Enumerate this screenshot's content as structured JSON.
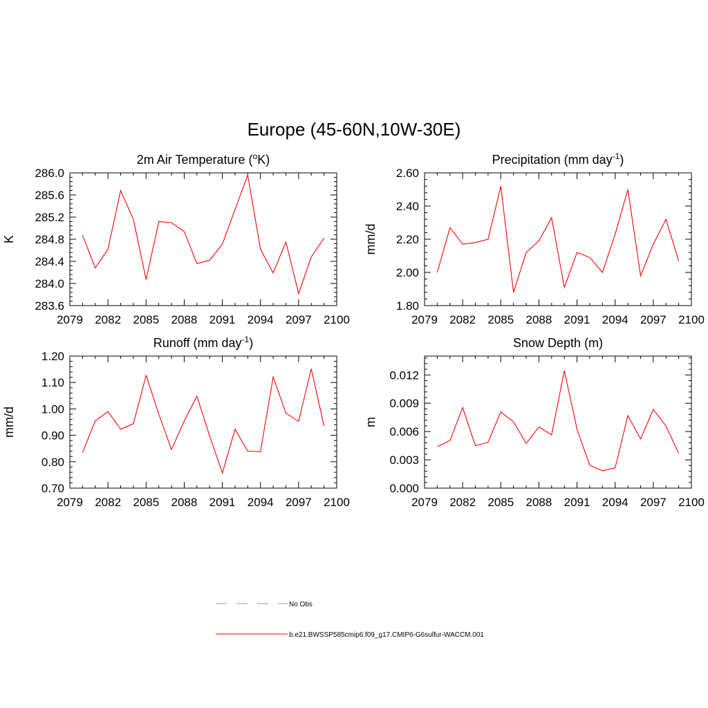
{
  "figure": {
    "title": "Europe (45-60N,10W-30E)"
  },
  "legend": {
    "entries": [
      {
        "label": "No Obs",
        "color": "#aaaaee",
        "style": "dashed"
      },
      {
        "label": "b.e21.BWSSP585cmip6.f09_g17.CMIP6-G6sulfur-WACCM.001",
        "color": "#ff0000",
        "style": "solid"
      }
    ]
  },
  "chart_data": [
    {
      "type": "line",
      "title": "2m Air Temperature (oK)",
      "title_main": "2m Air Temperature (",
      "title_sup": "o",
      "title_tail": "K)",
      "xlabel": "",
      "ylabel": "K",
      "xlim": [
        2079,
        2100
      ],
      "ylim": [
        283.6,
        286.0
      ],
      "xticks": [
        "2079",
        "2082",
        "2085",
        "2088",
        "2091",
        "2094",
        "2097",
        "2100"
      ],
      "yticks": [
        "283.6",
        "284.0",
        "284.4",
        "284.8",
        "285.2",
        "285.6",
        "286.0"
      ],
      "series": [
        {
          "color": "#ff0000",
          "x": [
            2080,
            2081,
            2082,
            2083,
            2084,
            2085,
            2086,
            2087,
            2088,
            2089,
            2090,
            2091,
            2092,
            2093,
            2094,
            2095,
            2096,
            2097,
            2098,
            2099
          ],
          "values": [
            284.87,
            284.28,
            284.62,
            285.68,
            285.16,
            284.07,
            285.12,
            285.1,
            284.94,
            284.36,
            284.42,
            284.71,
            285.34,
            285.96,
            284.62,
            284.19,
            284.75,
            283.82,
            284.48,
            284.82
          ]
        }
      ]
    },
    {
      "type": "line",
      "title": "Precipitation (mm day-1)",
      "title_main": "Precipitation (mm day",
      "title_sup": "-1",
      "title_tail": ")",
      "xlabel": "",
      "ylabel": "mm/d",
      "xlim": [
        2079,
        2100
      ],
      "ylim": [
        1.8,
        2.6
      ],
      "xticks": [
        "2079",
        "2082",
        "2085",
        "2088",
        "2091",
        "2094",
        "2097",
        "2100"
      ],
      "yticks": [
        "1.80",
        "2.00",
        "2.20",
        "2.40",
        "2.60"
      ],
      "series": [
        {
          "color": "#ff0000",
          "x": [
            2080,
            2081,
            2082,
            2083,
            2084,
            2085,
            2086,
            2087,
            2088,
            2089,
            2090,
            2091,
            2092,
            2093,
            2094,
            2095,
            2096,
            2097,
            2098,
            2099
          ],
          "values": [
            2.0,
            2.27,
            2.17,
            2.18,
            2.2,
            2.52,
            1.88,
            2.12,
            2.19,
            2.33,
            1.91,
            2.12,
            2.09,
            2.0,
            2.23,
            2.5,
            1.98,
            2.17,
            2.32,
            2.07
          ]
        }
      ]
    },
    {
      "type": "line",
      "title": "Runoff (mm day-1)",
      "title_main": "Runoff (mm day",
      "title_sup": "-1",
      "title_tail": ")",
      "xlabel": "",
      "ylabel": "mm/d",
      "xlim": [
        2079,
        2100
      ],
      "ylim": [
        0.7,
        1.2
      ],
      "xticks": [
        "2079",
        "2082",
        "2085",
        "2088",
        "2091",
        "2094",
        "2097",
        "2100"
      ],
      "yticks": [
        "0.70",
        "0.80",
        "0.90",
        "1.00",
        "1.10",
        "1.20"
      ],
      "series": [
        {
          "color": "#ff0000",
          "x": [
            2080,
            2081,
            2082,
            2083,
            2084,
            2085,
            2086,
            2087,
            2088,
            2089,
            2090,
            2091,
            2092,
            2093,
            2094,
            2095,
            2096,
            2097,
            2098,
            2099
          ],
          "values": [
            0.835,
            0.955,
            0.99,
            0.923,
            0.944,
            1.127,
            0.98,
            0.846,
            0.954,
            1.048,
            0.898,
            0.757,
            0.923,
            0.84,
            0.838,
            1.121,
            0.984,
            0.953,
            1.152,
            0.935
          ]
        }
      ]
    },
    {
      "type": "line",
      "title": "Snow Depth (m)",
      "title_main": "Snow Depth (m)",
      "title_sup": "",
      "title_tail": "",
      "xlabel": "",
      "ylabel": "m",
      "xlim": [
        2079,
        2100
      ],
      "ylim": [
        0.0,
        0.014
      ],
      "xticks": [
        "2079",
        "2082",
        "2085",
        "2088",
        "2091",
        "2094",
        "2097",
        "2100"
      ],
      "yticks": [
        "0.000",
        "0.003",
        "0.006",
        "0.009",
        "0.012"
      ],
      "series": [
        {
          "color": "#ff0000",
          "x": [
            2080,
            2081,
            2082,
            2083,
            2084,
            2085,
            2086,
            2087,
            2088,
            2089,
            2090,
            2091,
            2092,
            2093,
            2094,
            2095,
            2096,
            2097,
            2098,
            2099
          ],
          "values": [
            0.0044,
            0.00505,
            0.00855,
            0.0045,
            0.00487,
            0.00808,
            0.00704,
            0.00474,
            0.00648,
            0.00565,
            0.01245,
            0.00622,
            0.00242,
            0.00185,
            0.00215,
            0.0077,
            0.00522,
            0.00835,
            0.0066,
            0.00368
          ]
        }
      ]
    }
  ]
}
